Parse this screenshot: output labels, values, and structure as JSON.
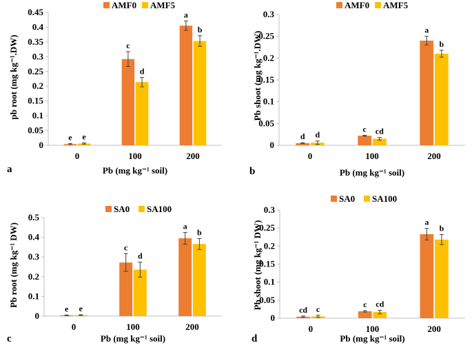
{
  "colors": {
    "series1": "#ED7D31",
    "series2": "#FFC000"
  },
  "chart_data": [
    {
      "type": "bar",
      "panel": "a",
      "categories": [
        "0",
        "100",
        "200"
      ],
      "series": [
        {
          "name": "AMF0",
          "values": [
            0.004,
            0.292,
            0.405
          ],
          "errors": [
            0.002,
            0.025,
            0.016
          ],
          "letters": [
            "e",
            "c",
            "a"
          ]
        },
        {
          "name": "AMF5",
          "values": [
            0.006,
            0.214,
            0.353
          ],
          "errors": [
            0.002,
            0.016,
            0.018
          ],
          "letters": [
            "e",
            "d",
            "b"
          ]
        }
      ],
      "xlabel": "Pb (mg kg⁻¹ soil)",
      "ylabel": "pb root (mg kg⁻¹.DW)",
      "ylim": [
        0,
        0.45
      ],
      "yticks": [
        "0",
        "0.05",
        "0.1",
        "0.15",
        "0.2",
        "0.25",
        "0.3",
        "0.35",
        "0.4",
        "0.45"
      ],
      "legend": "top"
    },
    {
      "type": "bar",
      "panel": "b",
      "categories": [
        "0",
        "100",
        "200"
      ],
      "series": [
        {
          "name": "AMF0",
          "values": [
            0.005,
            0.022,
            0.24
          ],
          "errors": [
            0.001,
            0.001,
            0.01
          ],
          "letters": [
            "d",
            "c",
            "a"
          ]
        },
        {
          "name": "AMF5",
          "values": [
            0.006,
            0.015,
            0.21
          ],
          "errors": [
            0.004,
            0.003,
            0.008
          ],
          "letters": [
            "d",
            "cd",
            "b"
          ]
        }
      ],
      "xlabel": "Pb (mg kg⁻¹ soil)",
      "ylabel": "Pb shoot (mg kg⁻¹.DW)",
      "ylim": [
        0,
        0.3
      ],
      "yticks": [
        "0",
        "0.05",
        "0.1",
        "0.15",
        "0.2",
        "0.25",
        "0.3"
      ],
      "legend": "top"
    },
    {
      "type": "bar",
      "panel": "c",
      "categories": [
        "0",
        "100",
        "200"
      ],
      "series": [
        {
          "name": "SA0",
          "values": [
            0.004,
            0.272,
            0.395
          ],
          "errors": [
            0.002,
            0.045,
            0.03
          ],
          "letters": [
            "e",
            "c",
            "a"
          ]
        },
        {
          "name": "SA100",
          "values": [
            0.005,
            0.236,
            0.366
          ],
          "errors": [
            0.002,
            0.038,
            0.028
          ],
          "letters": [
            "e",
            "d",
            "b"
          ]
        }
      ],
      "xlabel": "Pb (mg kg⁻¹ soil)",
      "ylabel": "Pb root (mg kg⁻¹ DW)",
      "ylim": [
        0,
        0.5
      ],
      "yticks": [
        "0",
        "0.1",
        "0.2",
        "0.3",
        "0.4",
        "0.5"
      ],
      "legend": "top"
    },
    {
      "type": "bar",
      "panel": "d",
      "categories": [
        "0",
        "100",
        "200"
      ],
      "series": [
        {
          "name": "SA0",
          "values": [
            0.004,
            0.019,
            0.233
          ],
          "errors": [
            0.002,
            0.002,
            0.016
          ],
          "letters": [
            "cd",
            "c",
            "a"
          ]
        },
        {
          "name": "SA100",
          "values": [
            0.005,
            0.017,
            0.218
          ],
          "errors": [
            0.003,
            0.005,
            0.014
          ],
          "letters": [
            "c",
            "cd",
            "b"
          ]
        }
      ],
      "xlabel": "Pb (mg kg⁻¹ soil)",
      "ylabel": "Pb shoot (mg kg⁻¹ DW)",
      "ylim": [
        0,
        0.3
      ],
      "yticks": [
        "0",
        "0.05",
        "0.1",
        "0.15",
        "0.2",
        "0.25",
        "0.3"
      ],
      "legend": "top"
    }
  ]
}
